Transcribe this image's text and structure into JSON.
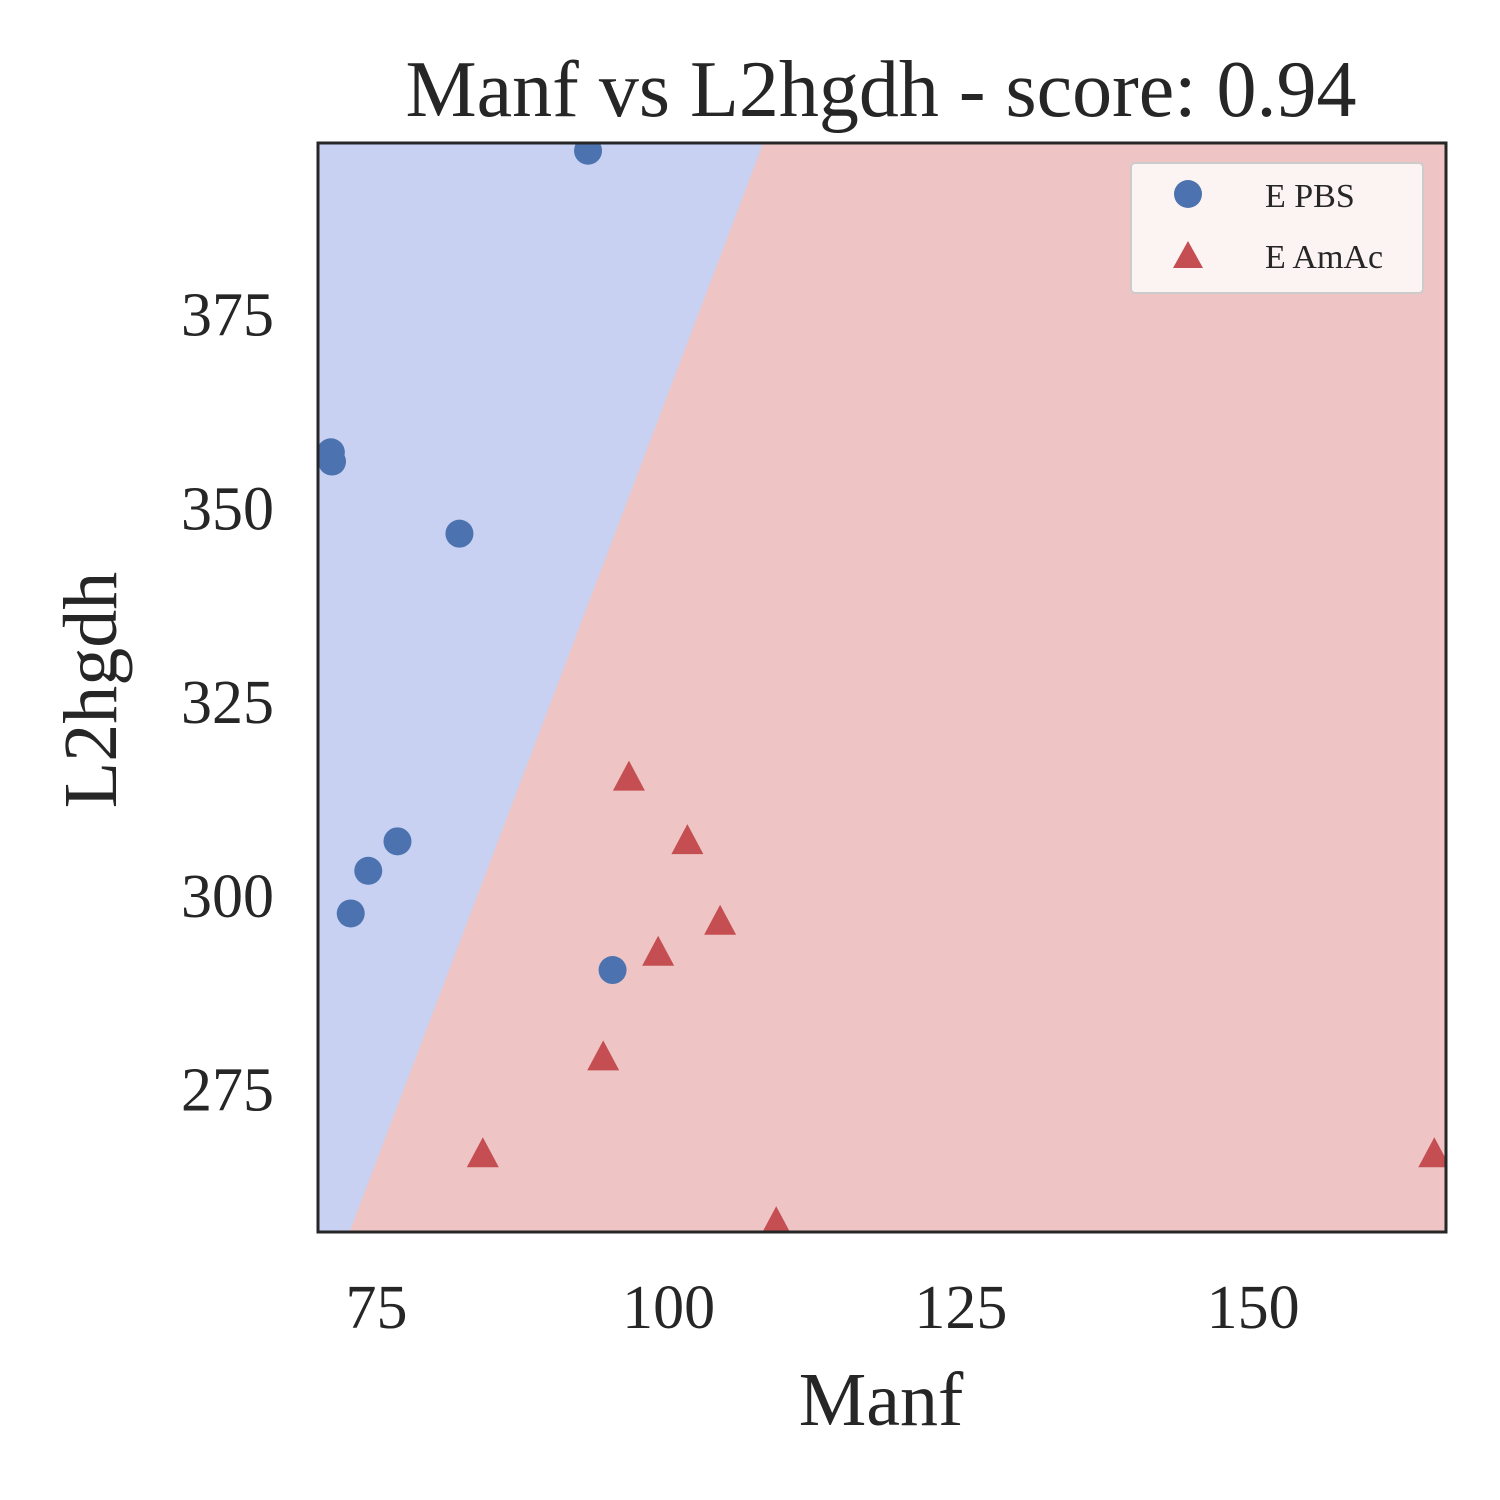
{
  "chart_data": {
    "type": "scatter",
    "title": "Manf vs L2hgdh - score: 0.94",
    "xlabel": "Manf",
    "ylabel": "L2hgdh",
    "xlim": [
      70,
      166.5
    ],
    "ylim": [
      256.5,
      397
    ],
    "xticks": [
      75,
      100,
      125,
      150
    ],
    "yticks": [
      275,
      300,
      325,
      350,
      375
    ],
    "grid": false,
    "legend_position": "top-right",
    "colors": {
      "region_pbs": "#c8d1f1",
      "region_amac": "#eec5c4",
      "pbs": "#4c72b0",
      "amac": "#c44e52",
      "frame": "#262626"
    },
    "decision_boundary": {
      "points": [
        [
          72.7,
          256.5
        ],
        [
          108.1,
          397
        ]
      ]
    },
    "series": [
      {
        "name": "E PBS",
        "marker": "circle",
        "points": [
          [
            93.1,
            396.0
          ],
          [
            71.1,
            357.1
          ],
          [
            71.2,
            355.9
          ],
          [
            82.1,
            346.6
          ],
          [
            76.8,
            306.9
          ],
          [
            74.3,
            303.1
          ],
          [
            72.8,
            297.6
          ],
          [
            95.2,
            290.3
          ]
        ]
      },
      {
        "name": "E AmAc",
        "marker": "triangle",
        "points": [
          [
            96.6,
            315.0
          ],
          [
            101.6,
            306.8
          ],
          [
            104.4,
            296.4
          ],
          [
            99.1,
            292.4
          ],
          [
            94.4,
            278.9
          ],
          [
            84.1,
            266.4
          ],
          [
            109.2,
            257.5
          ],
          [
            165.5,
            266.4
          ]
        ]
      }
    ]
  }
}
